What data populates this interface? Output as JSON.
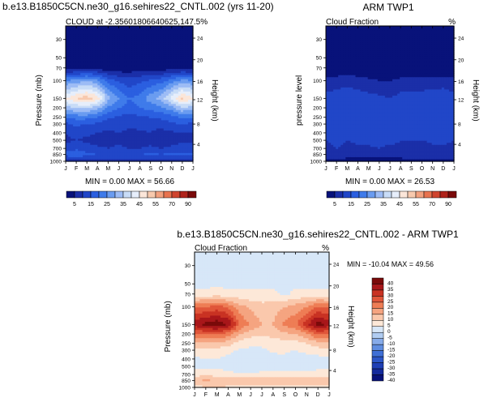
{
  "figure": {
    "title_left": "b.e13.B1850C5CN.ne30_g16.sehires22_CNTL.002 (yrs 11-20)",
    "title_bottom": "b.e13.B1850C5CN.ne30_g16.sehires22_CNTL.002 - ARM TWP1"
  },
  "chart_data": [
    {
      "id": "model",
      "type": "contour",
      "title": "CLOUD at -2.35601806640625,147.5%",
      "ylabel": "Pressure (mb)",
      "ylabel_right": "Height (km)",
      "xlabels": [
        "J",
        "F",
        "M",
        "A",
        "M",
        "J",
        "J",
        "A",
        "S",
        "O",
        "N",
        "D",
        "J"
      ],
      "yticks_pressure": [
        30,
        50,
        70,
        100,
        150,
        200,
        250,
        300,
        400,
        500,
        700,
        850,
        1000
      ],
      "yticks_height": [
        24,
        20,
        16,
        12,
        8,
        4
      ],
      "stats": "MIN =   0.00 MAX =  56.66",
      "levels": [
        5,
        10,
        15,
        20,
        25,
        30,
        35,
        40,
        45,
        50,
        55,
        60,
        70,
        80,
        90
      ],
      "colorbar_labels": [
        "5",
        "15",
        "25",
        "35",
        "45",
        "55",
        "70",
        "90"
      ],
      "colors": [
        "#08127a",
        "#1b2fa8",
        "#2146c8",
        "#2b5fe0",
        "#3f7bea",
        "#6a9cf0",
        "#9dbcf5",
        "#c8dcf7",
        "#e6eefb",
        "#fbe6d9",
        "#f7c9ae",
        "#f2a17f",
        "#e8734f",
        "#d0452f",
        "#b0231b",
        "#7a0a0a"
      ],
      "months": [
        0,
        1,
        2,
        3,
        4,
        5,
        6,
        7,
        8,
        9,
        10,
        11,
        12
      ],
      "pressure_levels": [
        30,
        50,
        70,
        100,
        150,
        200,
        250,
        300,
        400,
        500,
        700,
        850,
        1000
      ],
      "values": [
        [
          0,
          0,
          0,
          0,
          0,
          0,
          0,
          0,
          0,
          0,
          0,
          0,
          0
        ],
        [
          0,
          0,
          0,
          0,
          0,
          0,
          0,
          0,
          0,
          0,
          0,
          0,
          0
        ],
        [
          2,
          2,
          3,
          2,
          1,
          1,
          1,
          2,
          2,
          2,
          2,
          2,
          2
        ],
        [
          25,
          27,
          30,
          26,
          18,
          14,
          12,
          14,
          16,
          18,
          22,
          27,
          25
        ],
        [
          45,
          50,
          53,
          48,
          32,
          25,
          20,
          22,
          28,
          32,
          42,
          52,
          45
        ],
        [
          32,
          35,
          36,
          32,
          24,
          20,
          18,
          20,
          22,
          24,
          28,
          35,
          32
        ],
        [
          20,
          22,
          22,
          20,
          16,
          14,
          13,
          14,
          15,
          16,
          18,
          21,
          20
        ],
        [
          14,
          16,
          15,
          14,
          12,
          12,
          11,
          12,
          12,
          12,
          14,
          15,
          14
        ],
        [
          10,
          12,
          11,
          10,
          9,
          10,
          9,
          9,
          10,
          8,
          9,
          10,
          10
        ],
        [
          9,
          10,
          9,
          8,
          8,
          9,
          8,
          8,
          8,
          6,
          8,
          9,
          9
        ],
        [
          12,
          14,
          12,
          11,
          10,
          11,
          10,
          10,
          11,
          10,
          11,
          12,
          12
        ],
        [
          17,
          19,
          16,
          15,
          14,
          15,
          14,
          15,
          16,
          15,
          16,
          17,
          17
        ],
        [
          8,
          8,
          8,
          7,
          7,
          7,
          7,
          7,
          7,
          7,
          8,
          8,
          8
        ]
      ]
    },
    {
      "id": "obs",
      "type": "contour",
      "title_left": "Cloud Fraction",
      "title_right": "%",
      "center_title": "ARM TWP1",
      "ylabel": "pressure level",
      "ylabel_right": "Height (km)",
      "xlabels": [
        "J",
        "F",
        "M",
        "A",
        "M",
        "J",
        "J",
        "A",
        "S",
        "O",
        "N",
        "D",
        "J"
      ],
      "yticks_pressure": [
        30,
        50,
        70,
        100,
        150,
        200,
        250,
        300,
        400,
        500,
        700,
        850,
        1000
      ],
      "yticks_height": [
        24,
        20,
        16,
        12,
        8,
        4
      ],
      "stats": "MIN =   0.00 MAX =  26.53",
      "levels": [
        5,
        10,
        15,
        20,
        25,
        30,
        35,
        40,
        45,
        50,
        55,
        60,
        70,
        80,
        90
      ],
      "colorbar_labels": [
        "5",
        "15",
        "25",
        "35",
        "45",
        "55",
        "70",
        "90"
      ],
      "colors": [
        "#08127a",
        "#1b2fa8",
        "#2146c8",
        "#2b5fe0",
        "#3f7bea",
        "#6a9cf0",
        "#9dbcf5",
        "#c8dcf7",
        "#e6eefb",
        "#fbe6d9",
        "#f7c9ae",
        "#f2a17f",
        "#e8734f",
        "#d0452f",
        "#b0231b",
        "#7a0a0a"
      ],
      "months": [
        0,
        1,
        2,
        3,
        4,
        5,
        6,
        7,
        8,
        9,
        10,
        11,
        12
      ],
      "pressure_levels": [
        30,
        50,
        70,
        100,
        150,
        200,
        250,
        300,
        400,
        500,
        700,
        850,
        1000
      ],
      "values": [
        [
          0,
          0,
          0,
          0,
          0,
          0,
          0,
          0,
          0,
          0,
          0,
          0,
          0
        ],
        [
          0,
          0,
          0,
          0,
          0,
          0,
          0,
          0,
          0,
          0,
          0,
          0,
          0
        ],
        [
          1,
          1,
          1,
          1,
          1,
          0,
          0,
          1,
          1,
          1,
          1,
          1,
          1
        ],
        [
          6,
          7,
          8,
          7,
          6,
          5,
          5,
          6,
          6,
          6,
          7,
          7,
          6
        ],
        [
          12,
          13,
          14,
          13,
          12,
          11,
          10,
          12,
          12,
          13,
          13,
          14,
          12
        ],
        [
          13,
          14,
          15,
          14,
          14,
          13,
          12,
          13,
          13,
          14,
          14,
          14,
          13
        ],
        [
          12,
          13,
          13,
          13,
          13,
          13,
          12,
          12,
          12,
          13,
          13,
          13,
          12
        ],
        [
          11,
          12,
          12,
          12,
          13,
          13,
          12,
          11,
          11,
          12,
          12,
          12,
          11
        ],
        [
          11,
          12,
          11,
          12,
          14,
          13,
          12,
          11,
          11,
          11,
          12,
          12,
          11
        ],
        [
          10,
          11,
          10,
          11,
          12,
          13,
          12,
          10,
          10,
          10,
          11,
          11,
          10
        ],
        [
          9,
          10,
          9,
          9,
          9,
          10,
          8,
          9,
          9,
          8,
          9,
          9,
          9
        ],
        [
          8,
          8,
          7,
          6,
          6,
          7,
          6,
          7,
          8,
          7,
          7,
          8,
          8
        ],
        [
          4,
          4,
          3,
          3,
          3,
          3,
          3,
          3,
          4,
          4,
          4,
          4,
          4
        ]
      ]
    },
    {
      "id": "diff",
      "type": "contour",
      "title_left": "Cloud Fraction",
      "title_right": "%",
      "ylabel": "Pressure (mb)",
      "ylabel_right": "Height (km)",
      "xlabels": [
        "J",
        "F",
        "M",
        "A",
        "M",
        "J",
        "J",
        "A",
        "S",
        "O",
        "N",
        "D",
        "J"
      ],
      "yticks_pressure": [
        30,
        50,
        70,
        100,
        150,
        200,
        250,
        300,
        400,
        500,
        700,
        850,
        1000
      ],
      "yticks_height": [
        24,
        20,
        16,
        12,
        8,
        4
      ],
      "stats": "MIN = -10.04 MAX =  49.56",
      "levels": [
        -40,
        -35,
        -30,
        -25,
        -20,
        -15,
        -10,
        -5,
        0,
        5,
        10,
        15,
        20,
        25,
        30,
        35,
        40
      ],
      "colorbar_labels": [
        "40",
        "35",
        "30",
        "25",
        "20",
        "15",
        "10",
        "5",
        "0",
        "-5",
        "-10",
        "-15",
        "-20",
        "-25",
        "-30",
        "-35",
        "-40"
      ],
      "colors": [
        "#08127a",
        "#142a9c",
        "#1f3fb5",
        "#2c56c8",
        "#3f6fd6",
        "#5f8de0",
        "#86abe9",
        "#b1cdf2",
        "#d7e7f8",
        "#fde8d8",
        "#fac8ac",
        "#f5a480",
        "#ee7d55",
        "#e0563a",
        "#c93223",
        "#a8171a",
        "#7a0a0a"
      ],
      "months": [
        0,
        1,
        2,
        3,
        4,
        5,
        6,
        7,
        8,
        9,
        10,
        11,
        12
      ],
      "pressure_levels": [
        30,
        50,
        70,
        100,
        150,
        200,
        250,
        300,
        400,
        500,
        700,
        850,
        1000
      ],
      "values": [
        [
          -1,
          -1,
          -1,
          -1,
          -1,
          -1,
          -1,
          -1,
          -1,
          -1,
          -1,
          -1,
          -1
        ],
        [
          -1,
          -1,
          -1,
          -1,
          -1,
          -1,
          -1,
          -1,
          -1,
          -1,
          -1,
          -1,
          -1
        ],
        [
          1,
          1,
          2,
          1,
          1,
          1,
          1,
          1,
          -1,
          1,
          1,
          1,
          1
        ],
        [
          19,
          20,
          22,
          19,
          12,
          9,
          7,
          8,
          10,
          12,
          15,
          20,
          19
        ],
        [
          33,
          37,
          39,
          35,
          20,
          14,
          10,
          10,
          16,
          19,
          29,
          38,
          33
        ],
        [
          19,
          21,
          21,
          18,
          10,
          7,
          6,
          7,
          9,
          10,
          14,
          21,
          19
        ],
        [
          8,
          9,
          9,
          7,
          3,
          1,
          1,
          2,
          3,
          3,
          5,
          8,
          8
        ],
        [
          3,
          4,
          3,
          2,
          -1,
          -1,
          -1,
          1,
          1,
          0,
          2,
          3,
          3
        ],
        [
          -1,
          0,
          0,
          -2,
          -5,
          -3,
          -3,
          -2,
          -1,
          -3,
          -3,
          -2,
          -1
        ],
        [
          -1,
          -1,
          -1,
          -3,
          -4,
          -4,
          -4,
          -2,
          -2,
          -4,
          -3,
          -2,
          -1
        ],
        [
          3,
          4,
          3,
          2,
          1,
          1,
          2,
          1,
          2,
          2,
          2,
          3,
          3
        ],
        [
          9,
          11,
          9,
          9,
          8,
          8,
          8,
          8,
          8,
          8,
          9,
          9,
          9
        ],
        [
          4,
          4,
          5,
          4,
          4,
          4,
          4,
          4,
          3,
          3,
          4,
          4,
          4
        ]
      ]
    }
  ]
}
